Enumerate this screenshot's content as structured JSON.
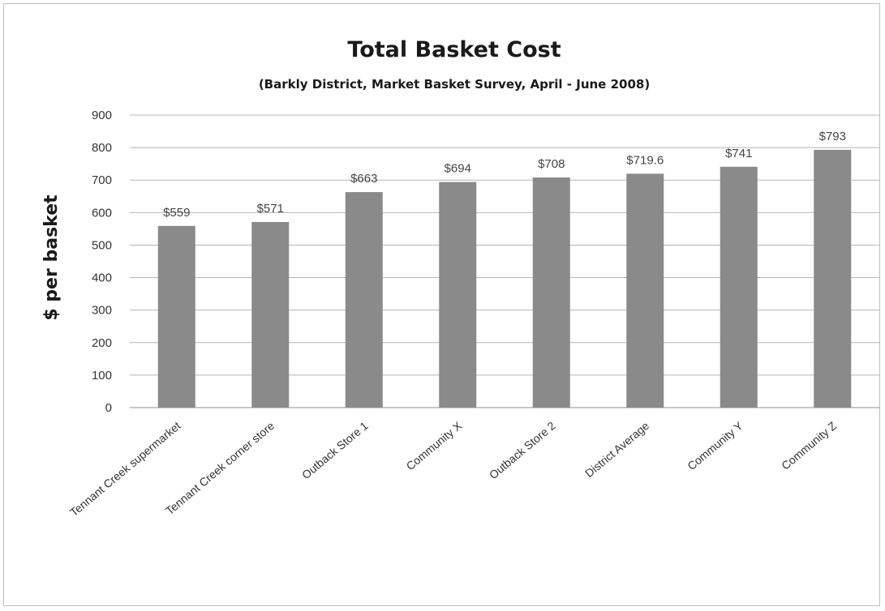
{
  "chart_data": {
    "type": "bar",
    "title": "Total Basket Cost",
    "subtitle": "(Barkly District, Market Basket Survey, April - June 2008)",
    "xlabel": "",
    "ylabel": "$ per basket",
    "ylim": [
      0,
      900
    ],
    "yticks": [
      0,
      100,
      200,
      300,
      400,
      500,
      600,
      700,
      800,
      900
    ],
    "grid": true,
    "legend": "none",
    "categories": [
      "Tennant Creek supermarket",
      "Tennant Creek corner store",
      "Outback Store 1",
      "Community X",
      "Outback Store 2",
      "District Average",
      "Community Y",
      "Community Z"
    ],
    "values": [
      559,
      571,
      663,
      694,
      708,
      719.6,
      741,
      793
    ],
    "data_labels": [
      "$559",
      "$571",
      "$663",
      "$694",
      "$708",
      "$719.6",
      "$741",
      "$793"
    ],
    "bar_color": "#8a8a8a"
  }
}
